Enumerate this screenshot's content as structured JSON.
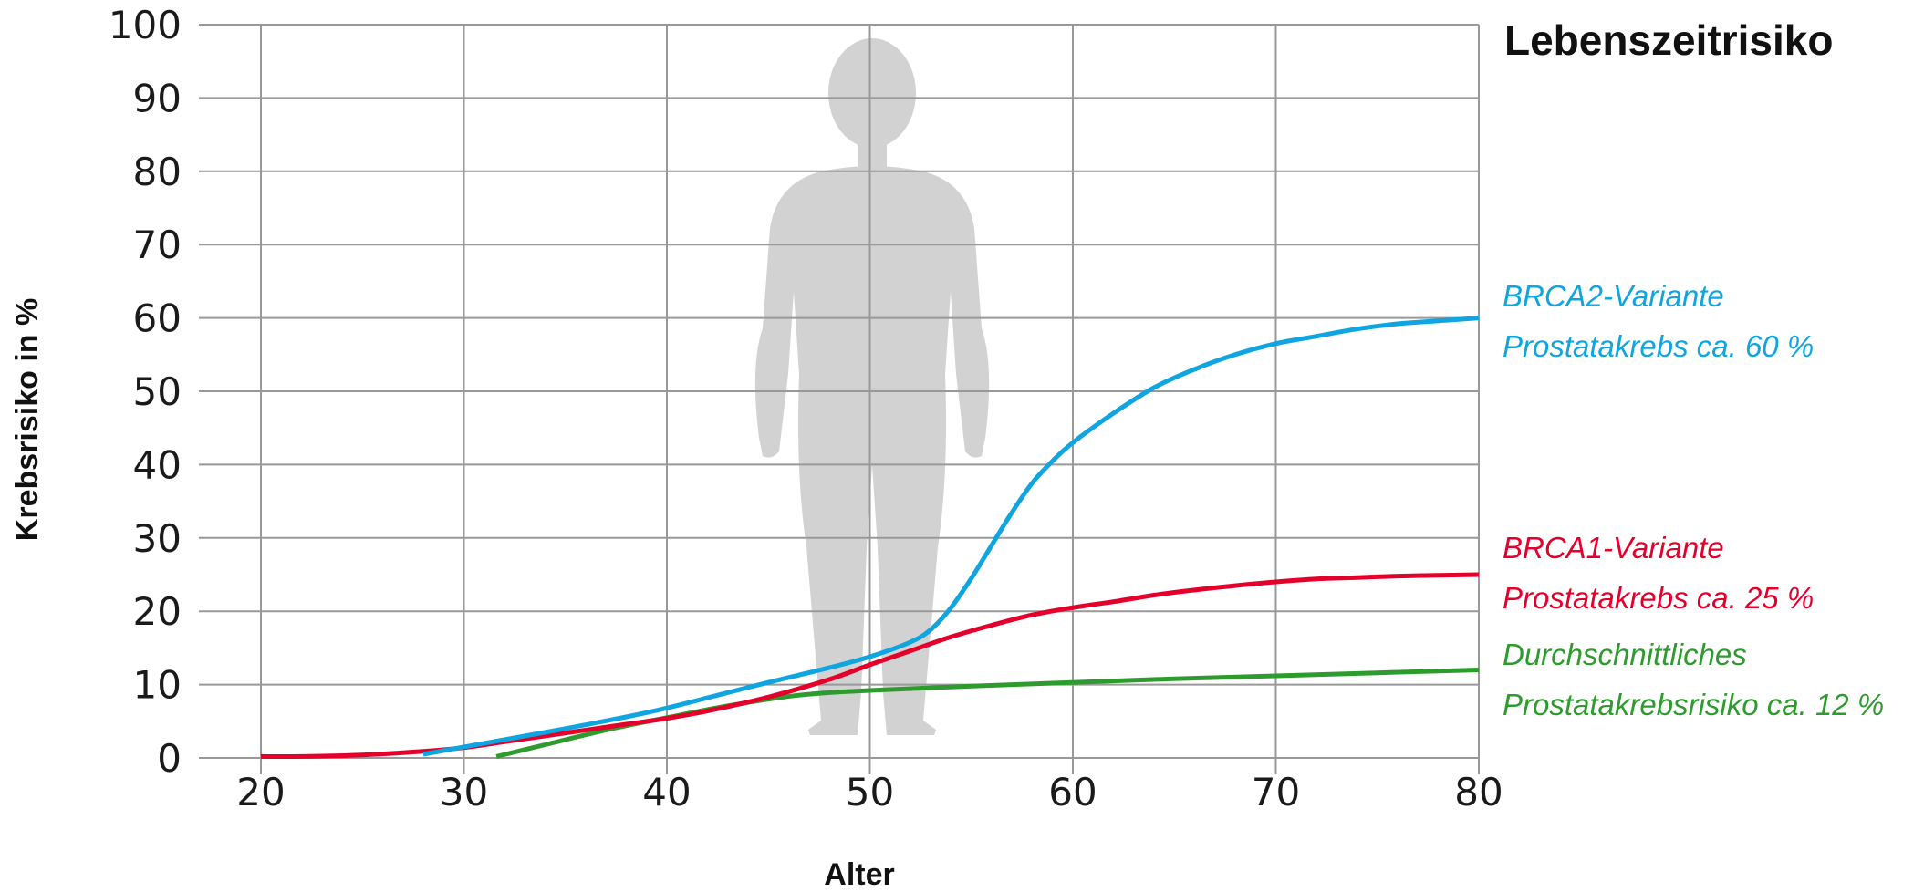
{
  "chart_data": {
    "type": "line",
    "title": "Lebenszeitrisiko",
    "xlabel": "Alter",
    "ylabel": "Krebsrisiko in %",
    "xlim": [
      20,
      80
    ],
    "ylim": [
      0,
      100
    ],
    "x_ticks": [
      "20",
      "30",
      "40",
      "50",
      "60",
      "70",
      "80"
    ],
    "y_ticks": [
      "0",
      "10",
      "20",
      "30",
      "40",
      "50",
      "60",
      "70",
      "80",
      "90",
      "100"
    ],
    "grid": true,
    "legend": "right (direct labels)",
    "background_icon": "human-silhouette-icon",
    "series": [
      {
        "key": "brca2",
        "color": "#0ea5e0",
        "x": [
          28,
          30,
          32,
          35,
          38,
          40,
          42,
          45,
          48,
          50,
          52,
          53,
          54,
          55,
          56,
          57,
          58,
          59,
          60,
          62,
          64,
          66,
          68,
          70,
          72,
          74,
          76,
          78,
          80
        ],
        "y": [
          0.5,
          1.5,
          2.5,
          4,
          5.6,
          6.8,
          8.2,
          10.3,
          12.3,
          13.8,
          15.8,
          17.5,
          20.5,
          24.5,
          29,
          33.5,
          37.5,
          40.5,
          43,
          47,
          50.5,
          53,
          55,
          56.5,
          57.5,
          58.5,
          59.2,
          59.6,
          60
        ]
      },
      {
        "key": "brca1",
        "color": "#e4002b",
        "x": [
          20,
          22,
          25,
          28,
          30,
          32,
          35,
          38,
          40,
          42,
          45,
          48,
          50,
          52,
          54,
          56,
          58,
          60,
          62,
          64,
          66,
          68,
          70,
          72,
          74,
          76,
          78,
          80
        ],
        "y": [
          0.2,
          0.2,
          0.4,
          0.9,
          1.4,
          2.2,
          3.4,
          4.6,
          5.4,
          6.4,
          8.3,
          10.7,
          12.7,
          14.6,
          16.5,
          18.1,
          19.5,
          20.5,
          21.3,
          22.2,
          22.9,
          23.5,
          24.0,
          24.4,
          24.6,
          24.8,
          24.9,
          25
        ]
      },
      {
        "key": "average",
        "color": "#2e9b2e",
        "x": [
          31.6,
          34,
          37,
          40,
          43,
          46,
          48,
          50,
          55,
          60,
          65,
          70,
          75,
          80
        ],
        "y": [
          0.2,
          1.8,
          3.8,
          5.5,
          7.1,
          8.4,
          8.9,
          9.2,
          9.8,
          10.3,
          10.8,
          11.2,
          11.6,
          12
        ]
      }
    ],
    "annotations": [
      {
        "series": "brca2",
        "lines": [
          "BRCA2-Variante",
          "Prostatakrebs ca. 60 %"
        ],
        "color": "#0ea5e0"
      },
      {
        "series": "brca1",
        "lines": [
          "BRCA1-Variante",
          "Prostatakrebs ca. 25 %"
        ],
        "color": "#e4002b"
      },
      {
        "series": "average",
        "lines": [
          "Durchschnittliches",
          "Prostatakrebsrisiko ca. 12 %"
        ],
        "color": "#2e9b2e"
      }
    ]
  }
}
